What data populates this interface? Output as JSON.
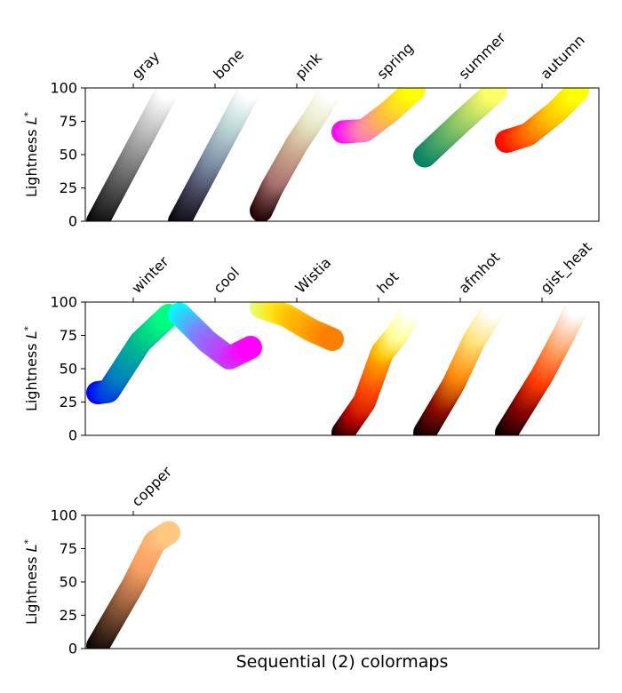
{
  "chart_data": {
    "type": "scatter",
    "xlabel": "Sequential (2) colormaps",
    "ylabel_text": "Lightness",
    "ylabel_symbol": "L",
    "ylabel_sup": "*",
    "ylim": [
      0,
      100
    ],
    "yticks": [
      0,
      25,
      50,
      75,
      100
    ],
    "grid": false,
    "panels": [
      {
        "colormaps": [
          {
            "name": "gray",
            "curve": [
              [
                0,
                0
              ],
              [
                0.5,
                50
              ],
              [
                1,
                100
              ]
            ],
            "colors": [
              "#000000",
              "#808080",
              "#ffffff"
            ]
          },
          {
            "name": "bone",
            "curve": [
              [
                0,
                0
              ],
              [
                0.5,
                50
              ],
              [
                1,
                100
              ]
            ],
            "colors": [
              "#000000",
              "#3c3c53",
              "#7e8fa6",
              "#b9d3d3",
              "#ffffff"
            ]
          },
          {
            "name": "pink",
            "curve": [
              [
                0,
                8
              ],
              [
                0.15,
                25
              ],
              [
                0.5,
                58
              ],
              [
                0.8,
                82
              ],
              [
                1,
                100
              ]
            ],
            "colors": [
              "#1e0000",
              "#a77070",
              "#c9a98b",
              "#e6e6c4",
              "#ffffff"
            ]
          },
          {
            "name": "spring",
            "curve": [
              [
                0,
                67
              ],
              [
                0.3,
                68
              ],
              [
                0.65,
                82
              ],
              [
                1,
                99
              ]
            ],
            "colors": [
              "#ff00ff",
              "#ff80b4",
              "#ffbf40",
              "#ffff00"
            ]
          },
          {
            "name": "summer",
            "curve": [
              [
                0,
                49
              ],
              [
                0.5,
                74
              ],
              [
                1,
                98
              ]
            ],
            "colors": [
              "#008066",
              "#80bf66",
              "#ffff66"
            ]
          },
          {
            "name": "autumn",
            "curve": [
              [
                0,
                60
              ],
              [
                0.3,
                65
              ],
              [
                0.7,
                82
              ],
              [
                1,
                98
              ]
            ],
            "colors": [
              "#ff0000",
              "#ff6000",
              "#ffbf00",
              "#ffff00"
            ]
          }
        ]
      },
      {
        "colormaps": [
          {
            "name": "winter",
            "curve": [
              [
                0,
                32
              ],
              [
                0.15,
                33
              ],
              [
                0.6,
                70
              ],
              [
                1,
                90
              ]
            ],
            "colors": [
              "#0000ff",
              "#0080bf",
              "#00c08a",
              "#00ff80"
            ]
          },
          {
            "name": "cool",
            "curve": [
              [
                0,
                91
              ],
              [
                0.4,
                70
              ],
              [
                0.7,
                58
              ],
              [
                1,
                66
              ]
            ],
            "colors": [
              "#00ffff",
              "#8080ff",
              "#bf40ff",
              "#ff00ff"
            ]
          },
          {
            "name": "Wistia",
            "curve": [
              [
                0,
                96
              ],
              [
                0.35,
                90
              ],
              [
                0.7,
                79
              ],
              [
                1,
                72
              ]
            ],
            "colors": [
              "#e4ff7a",
              "#ffe81a",
              "#ffbd00",
              "#ffa000",
              "#fc7f00"
            ]
          },
          {
            "name": "hot",
            "curve": [
              [
                0,
                2
              ],
              [
                0.3,
                25
              ],
              [
                0.55,
                62
              ],
              [
                0.75,
                75
              ],
              [
                1,
                97
              ]
            ],
            "colors": [
              "#0b0000",
              "#b60000",
              "#ff4a00",
              "#ffc400",
              "#ffff9a",
              "#ffffff"
            ]
          },
          {
            "name": "afmhot",
            "curve": [
              [
                0,
                2
              ],
              [
                0.4,
                38
              ],
              [
                0.7,
                72
              ],
              [
                1,
                97
              ]
            ],
            "colors": [
              "#000000",
              "#8a0a00",
              "#ff8a0a",
              "#ffe47a",
              "#ffffff"
            ]
          },
          {
            "name": "gist_heat",
            "curve": [
              [
                0,
                2
              ],
              [
                0.5,
                45
              ],
              [
                0.8,
                75
              ],
              [
                1,
                97
              ]
            ],
            "colors": [
              "#000000",
              "#800000",
              "#ff3a00",
              "#ffa060",
              "#ffffff"
            ]
          }
        ]
      },
      {
        "colormaps": [
          {
            "name": "copper",
            "curve": [
              [
                0,
                2
              ],
              [
                0.5,
                48
              ],
              [
                0.8,
                80
              ],
              [
                1,
                87
              ]
            ],
            "colors": [
              "#000000",
              "#7d4f32",
              "#fa9f64",
              "#ffc77f"
            ]
          }
        ]
      }
    ]
  }
}
